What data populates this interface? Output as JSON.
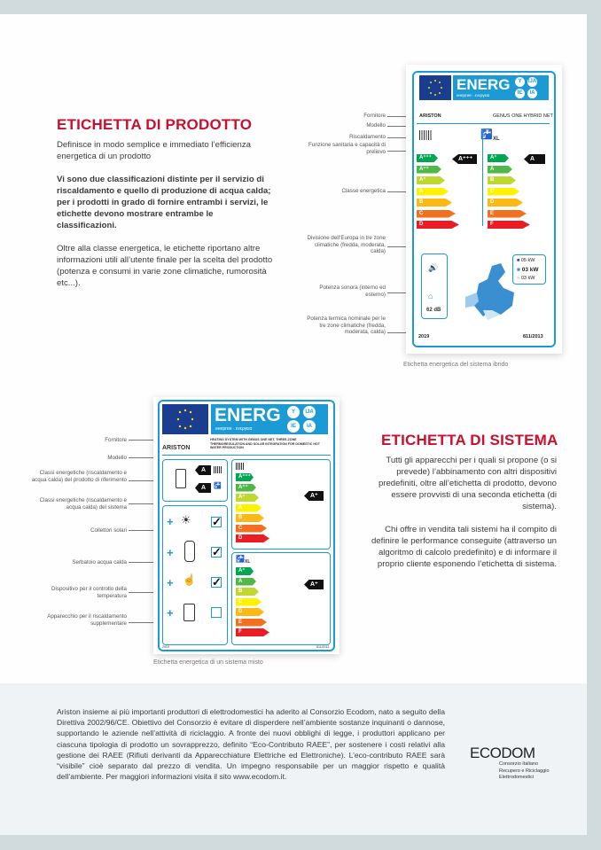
{
  "product": {
    "title": "ETICHETTA DI PRODOTTO",
    "intro": "Definisce in modo semplice e immediato l’efficienza energetica di un prodotto",
    "bold": "Vi sono due classificazioni distinte per il servizio di riscaldamento e quello di produzione di acqua calda; per i prodotti in grado di fornire entrambi i servizi, le etichette devono mostrare entrambe le classificazioni.",
    "more": "Oltre alla classe energetica, le etichette riportano altre informazioni utili all’utente finale per la scelta del prodotto (potenza e consumi in varie zone climatiche, rumorosità etc...).",
    "annotations": {
      "fornitore": "Fornitore",
      "modello": "Modello",
      "riscaldamento": "Riscaldamento",
      "sanitaria": "Funzione sanitaria e capacità di prelievo",
      "classe": "Classe energetica",
      "europa": "Divisione dell’Europa in tre zone climatiche (fredda, moderata, calda)",
      "sonora": "Potenza sonora (interno ed esterno)",
      "termica": "Potenza termica nominale per le tre zone climatiche (fredda, moderata, calda)"
    },
    "label": {
      "energ": "ENERG",
      "energ_sub": "енергия · ενεργεια",
      "circles": [
        "Y",
        "IJA",
        "IE",
        "IA"
      ],
      "brand": "ARISTON",
      "model": "GENUS ONE HYBRID NET",
      "xl": "XL",
      "heating_classes": [
        "A+++",
        "A++",
        "A+",
        "A",
        "B",
        "C",
        "D"
      ],
      "heating_rating": "A+++",
      "water_classes": [
        "A+",
        "A",
        "B",
        "C",
        "D",
        "E",
        "F"
      ],
      "water_rating": "A",
      "power": [
        "05 kW",
        "03 kW",
        "03 kW"
      ],
      "noise": "62 dB",
      "year": "2019",
      "regulation": "811/2013"
    },
    "caption": "Etichetta energetica del sistema ibrido"
  },
  "system": {
    "title": "ETICHETTA DI SISTEMA",
    "p1": "Tutti gli apparecchi per i quali si propone (o si prevede) l’abbinamento con altri dispositivi predefiniti, oltre all’etichetta di prodotto, devono essere provvisti di una seconda etichetta (di sistema).",
    "p2": "Chi offre in vendita tali sistemi ha il compito di definire le performance conseguite (attraverso un algoritmo di calcolo predefinito) e di informare il proprio cliente esponendo l’etichetta di sistema.",
    "annotations": {
      "fornitore": "Fornitore",
      "modello": "Modello",
      "classi_prodotto": "Classi energetiche (riscaldamento e acqua calda) del prodotto di riferimento",
      "classi_sistema": "Classi energetiche (riscaldamento e acqua calda) del sistema",
      "solari": "Collettori solari",
      "serbatoio": "Serbatoio acqua calda",
      "controllo": "Dispositivo per il controllo della temperatura",
      "supplementare": "Apparecchio per il riscaldamento supplementare"
    },
    "label": {
      "energ": "ENERG",
      "energ_sub": "енергия · ενεργεια",
      "circles": [
        "Y",
        "IJA",
        "IE",
        "IA"
      ],
      "brand": "ARISTON",
      "description": "HEATING SYSTEM WITH GENUS ONE NET, THREE-ZONE THERMOREGULATION AND SOLAR INTEGRATION FOR DOMESTIC HOT WATER PRODUCTION",
      "product_heating": "A",
      "product_water": "A",
      "xl": "XL",
      "heating_classes": [
        "A+++",
        "A++",
        "A+",
        "A",
        "B",
        "C",
        "D"
      ],
      "heating_rating": "A+",
      "water_classes": [
        "A+",
        "A",
        "B",
        "C",
        "D",
        "E",
        "F"
      ],
      "water_rating": "A+",
      "checks": [
        true,
        true,
        true,
        false
      ],
      "year": "2019",
      "regulation": "811/2013"
    },
    "caption": "Etichetta energetica di un sistema misto"
  },
  "footer": {
    "text": "Ariston insieme ai più importanti produttori di elettrodomestici ha aderito al Consorzio Ecodom, nato a seguito della Direttiva 2002/96/CE. Obiettivo del Consorzio è evitare di disperdere nell’ambiente sostanze inquinanti o dannose, supportando le aziende nell’attività di riciclaggio. A fronte dei nuovi obblighi di legge, i produttori applicano per ciascuna tipologia di prodotto un sovrapprezzo, definito “Eco-Contributo RAEE”, per sostenere i costi relativi alla gestione dei RAEE (Rifiuti derivanti da Apparecchiature Elettriche ed Elettroniche). L’eco-contributo RAEE sarà “visibile” cioè separato dal prezzo di vendita. Un impegno responsabile per un maggior rispetto e qualità dell’ambiente. Per maggiori informazioni visita il sito www.ecodom.it.",
    "logo": "ECODOM",
    "logo_sub": [
      "Consorzio Italiano",
      "Recupero e Riciclaggio",
      "Elettrodomestici"
    ]
  },
  "colors": {
    "accent": "#c8102e",
    "label_blue": "#1b9ad6",
    "eu_blue": "#1a3d8f",
    "heating_scale": [
      "#00a651",
      "#50b848",
      "#bfd730",
      "#fff200",
      "#fdb913",
      "#f37021",
      "#ed1c24"
    ],
    "water_scale": [
      "#00a651",
      "#50b848",
      "#bfd730",
      "#fff200",
      "#fdb913",
      "#f37021",
      "#ed1c24"
    ]
  }
}
